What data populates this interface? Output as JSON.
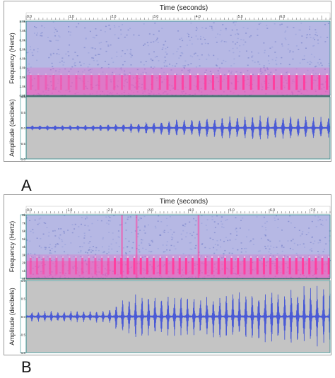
{
  "chart_data": [
    {
      "type": "spectrogram-waveform",
      "panel_label": "A",
      "time_axis": {
        "label": "Time (seconds)",
        "ticks": [
          "0.0",
          "1.0",
          "2.0",
          "3.0",
          "4.0",
          "5.0",
          "6.0"
        ],
        "range": [
          0,
          7.2
        ]
      },
      "spectrogram": {
        "ylabel": "Frequency (Hertz)",
        "ticks": [
          "8.0k",
          "7.0k",
          "6.0k",
          "5.0k",
          "4.0k",
          "3.0k",
          "2.0k",
          "1.0k",
          "0.0k"
        ],
        "range": [
          0,
          8000
        ]
      },
      "waveform": {
        "ylabel": "Amplitude (decibels)",
        "ticks": [
          "1.0",
          "0.5",
          "0.0",
          "-0.5",
          "-1.0"
        ],
        "range": [
          -1,
          1
        ],
        "color": "#4a5ad6"
      },
      "calls": {
        "onset": 0.1,
        "period": 0.18,
        "envelope": [
          [
            0,
            0.05
          ],
          [
            0.7,
            0.06
          ],
          [
            1.5,
            0.07
          ],
          [
            2.2,
            0.1
          ],
          [
            2.8,
            0.17
          ],
          [
            3.3,
            0.24
          ],
          [
            3.8,
            0.28
          ],
          [
            4.5,
            0.32
          ],
          [
            5.2,
            0.36
          ],
          [
            6.0,
            0.38
          ],
          [
            6.7,
            0.36
          ],
          [
            7.2,
            0.3
          ]
        ],
        "band_khz": [
          0.6,
          2.2
        ]
      },
      "colors": {
        "background": "#b6b8e4",
        "noise": "#7d88cc",
        "energy": "#ff3fa0",
        "axis": "#2a8a8a"
      }
    },
    {
      "type": "spectrogram-waveform",
      "panel_label": "B",
      "time_axis": {
        "label": "Time (seconds)",
        "ticks": [
          "0.0",
          "1.0",
          "2.0",
          "3.0",
          "4.0",
          "5.0",
          "6.0",
          "7.0"
        ],
        "range": [
          0,
          7.5
        ]
      },
      "spectrogram": {
        "ylabel": "Frequency (Hertz)",
        "ticks": [
          "8k",
          "7k",
          "6k",
          "5k",
          "4k",
          "3k",
          "2k",
          "1k",
          "0k"
        ],
        "range": [
          0,
          8000
        ]
      },
      "waveform": {
        "ylabel": "Amplitude (decibels)",
        "ticks": [
          "1.0",
          "0.5",
          "0.0",
          "-0.5",
          "-1.0"
        ],
        "range": [
          -1,
          1
        ],
        "color": "#4a5ad6"
      },
      "calls": {
        "onset": 0.1,
        "period": 0.16,
        "envelope": [
          [
            0,
            0.12
          ],
          [
            1.0,
            0.13
          ],
          [
            2.0,
            0.15
          ],
          [
            2.3,
            0.45
          ],
          [
            2.7,
            0.6
          ],
          [
            3.3,
            0.55
          ],
          [
            4.2,
            0.52
          ],
          [
            4.9,
            0.62
          ],
          [
            5.6,
            0.7
          ],
          [
            6.3,
            0.8
          ],
          [
            7.0,
            0.85
          ],
          [
            7.5,
            0.85
          ]
        ],
        "band_khz": [
          0.5,
          2.6
        ],
        "transients": [
          2.36,
          2.72,
          4.25
        ]
      },
      "colors": {
        "background": "#b6b8e4",
        "noise": "#7d88cc",
        "energy": "#ff3fa0",
        "axis": "#2a8a8a"
      }
    }
  ]
}
